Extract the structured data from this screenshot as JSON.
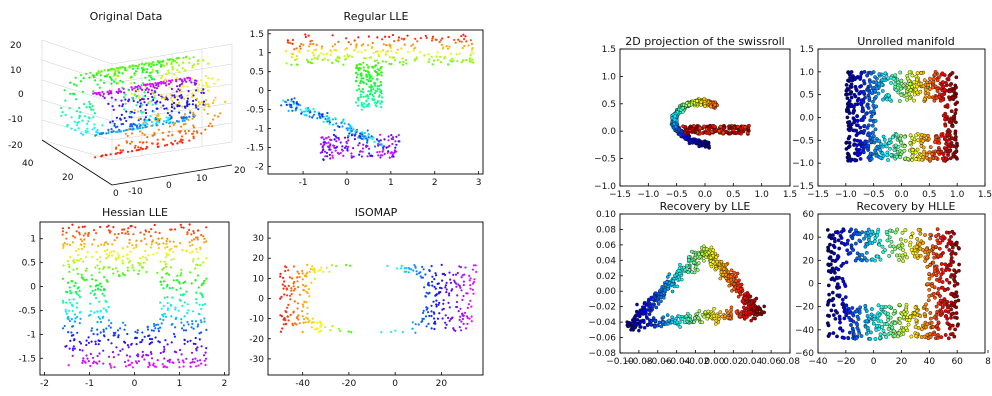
{
  "chart_data": [
    {
      "id": "original-data",
      "type": "scatter",
      "title": "Original Data",
      "projection": "3d",
      "generator": "swissroll-with-hole",
      "z_ticks": [
        "20",
        "10",
        "0",
        "-10",
        "-20"
      ],
      "y_ticks": [
        "40",
        "20",
        "0"
      ],
      "x_ticks": [
        "-10",
        "0",
        "10",
        "20"
      ],
      "zlim": [
        -20,
        20
      ],
      "color_scheme": "rainbow",
      "grid": true
    },
    {
      "id": "regular-lle",
      "type": "scatter",
      "title": "Regular LLE",
      "xlim": [
        -1.8,
        3.1
      ],
      "ylim": [
        -2.2,
        1.6
      ],
      "x_ticks": [
        -1,
        0,
        1,
        2,
        3
      ],
      "y_ticks": [
        1.5,
        1,
        0.5,
        0,
        -0.5,
        -1,
        -1.5,
        -2
      ],
      "color_scheme": "rainbow",
      "marker": "dot",
      "grid": false
    },
    {
      "id": "hessian-lle",
      "type": "scatter",
      "title": "Hessian LLE",
      "xlim": [
        -2.1,
        2.1
      ],
      "ylim": [
        -1.85,
        1.35
      ],
      "x_ticks": [
        -2,
        -1,
        0,
        1,
        2
      ],
      "y_ticks": [
        1,
        0.5,
        0,
        -0.5,
        -1,
        -1.5
      ],
      "color_scheme": "rainbow",
      "marker": "dot",
      "grid": false
    },
    {
      "id": "isomap",
      "type": "scatter",
      "title": "ISOMAP",
      "xlim": [
        -55,
        38
      ],
      "ylim": [
        -38,
        38
      ],
      "x_ticks": [
        -40,
        -20,
        0,
        20
      ],
      "y_ticks": [
        30,
        20,
        10,
        0,
        -10,
        -20,
        -30
      ],
      "color_scheme": "rainbow",
      "marker": "dot",
      "grid": false
    },
    {
      "id": "2d-projection",
      "type": "scatter",
      "title": "2D projection of the swissroll",
      "xlim": [
        -1.5,
        1.5
      ],
      "ylim": [
        -1.0,
        1.5
      ],
      "x_ticks": [
        "−1.5",
        "−1.0",
        "−0.5",
        "0.0",
        "0.5",
        "1.0",
        "1.5"
      ],
      "y_ticks": [
        "1.5",
        "1.0",
        "0.5",
        "0.0",
        "−0.5",
        "−1.0"
      ],
      "color_scheme": "jet",
      "marker": "circle",
      "grid": false
    },
    {
      "id": "unrolled-manifold",
      "type": "scatter",
      "title": "Unrolled manifold",
      "xlim": [
        -1.5,
        1.5
      ],
      "ylim": [
        -1.5,
        1.5
      ],
      "x_ticks": [
        "−1.5",
        "−1.0",
        "−0.5",
        "0.0",
        "0.5",
        "1.0",
        "1.5"
      ],
      "y_ticks": [
        "1.5",
        "1.0",
        "0.5",
        "0.0",
        "−0.5",
        "−1.0",
        "−1.5"
      ],
      "color_scheme": "jet",
      "marker": "circle",
      "grid": false
    },
    {
      "id": "recovery-lle",
      "type": "scatter",
      "title": "Recovery by LLE",
      "xlim": [
        -0.1,
        0.08
      ],
      "ylim": [
        -0.08,
        0.1
      ],
      "x_ticks": [
        "−0.10",
        "−0.08",
        "−0.06",
        "−0.04",
        "−0.02",
        "0.00",
        "0.02",
        "0.04",
        "0.06",
        "0.08"
      ],
      "y_ticks": [
        "0.10",
        "0.08",
        "0.06",
        "0.04",
        "0.02",
        "0.00",
        "−0.02",
        "−0.04",
        "−0.06",
        "−0.08"
      ],
      "color_scheme": "jet",
      "marker": "circle",
      "grid": false
    },
    {
      "id": "recovery-hlle",
      "type": "scatter",
      "title": "Recovery by HLLE",
      "xlim": [
        -40,
        80
      ],
      "ylim": [
        -60,
        60
      ],
      "x_ticks": [
        "−40",
        "−20",
        "0",
        "20",
        "40",
        "60",
        "8"
      ],
      "y_ticks": [
        "60",
        "40",
        "20",
        "0",
        "−20",
        "−40",
        "−60"
      ],
      "color_scheme": "jet",
      "marker": "circle",
      "grid": false
    }
  ]
}
